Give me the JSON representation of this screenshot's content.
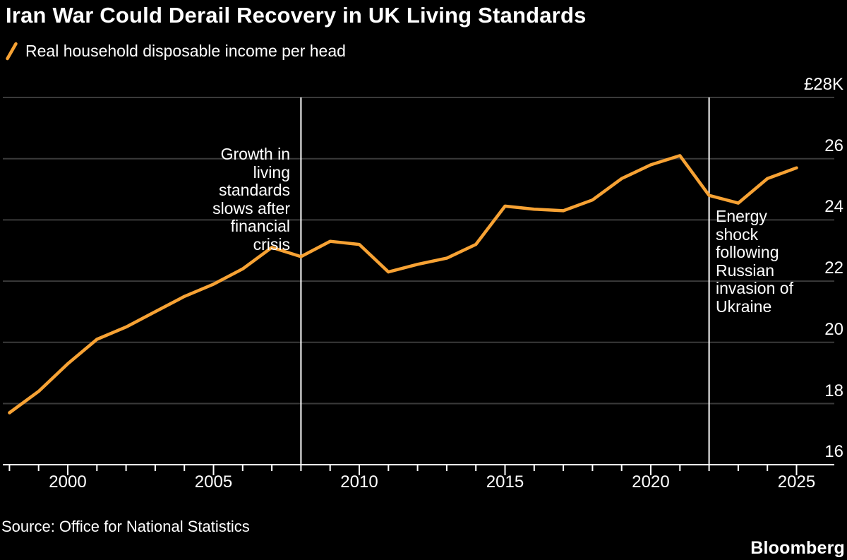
{
  "header": {
    "title": "Iran War Could Derail Recovery in UK Living Standards",
    "legend": {
      "marker": "/",
      "label": "Real household disposable income per head"
    }
  },
  "chart_data": {
    "type": "line",
    "title": "Iran War Could Derail Recovery in UK Living Standards",
    "legend_entries": [
      "Real household disposable income per head"
    ],
    "series": [
      {
        "name": "Real household disposable income per head",
        "x": [
          1998,
          1999,
          2000,
          2001,
          2002,
          2003,
          2004,
          2005,
          2006,
          2007,
          2008,
          2009,
          2010,
          2011,
          2012,
          2013,
          2014,
          2015,
          2016,
          2017,
          2018,
          2019,
          2020,
          2021,
          2022,
          2023,
          2024,
          2025
        ],
        "values": [
          17.7,
          18.4,
          19.3,
          20.1,
          20.5,
          21.0,
          21.5,
          21.9,
          22.4,
          23.1,
          22.8,
          23.3,
          23.2,
          22.3,
          22.55,
          22.75,
          23.2,
          24.45,
          24.35,
          24.3,
          24.65,
          25.35,
          25.8,
          26.1,
          24.8,
          24.55,
          25.35,
          25.7
        ]
      }
    ],
    "x_axis": {
      "tick_start": 1998,
      "tick_end": 2025,
      "labeled_ticks": [
        2000,
        2005,
        2010,
        2015,
        2020,
        2025
      ],
      "range": [
        1997.8,
        2026.3
      ]
    },
    "y_axis": {
      "unit": "GBP thousands",
      "max": 28,
      "min": 16,
      "ticks": [
        {
          "label": "£28K",
          "value": 28
        },
        {
          "label": "26",
          "value": 26
        },
        {
          "label": "24",
          "value": 24
        },
        {
          "label": "22",
          "value": 22
        },
        {
          "label": "20",
          "value": 20
        },
        {
          "label": "18",
          "value": 18
        },
        {
          "label": "16",
          "value": 16
        }
      ]
    },
    "annotations": [
      {
        "year": 2008,
        "align": "right",
        "text": "Growth in\nliving\nstandards\nslows after\nfinancial\ncrisis"
      },
      {
        "year": 2022,
        "align": "left",
        "text": "Energy\nshock\nfollowing\nRussian\ninvasion of\nUkraine"
      }
    ],
    "grid": true,
    "legend_position": "top-left",
    "colors": {
      "line": "#F7A234",
      "grid": "#3A3A3A",
      "axis": "#FFFFFF",
      "event_line": "#FFFFFF",
      "text": "#FFFFFF",
      "background": "#000000"
    }
  },
  "footer": {
    "source": "Source: Office for National Statistics",
    "brand": "Bloomberg"
  }
}
